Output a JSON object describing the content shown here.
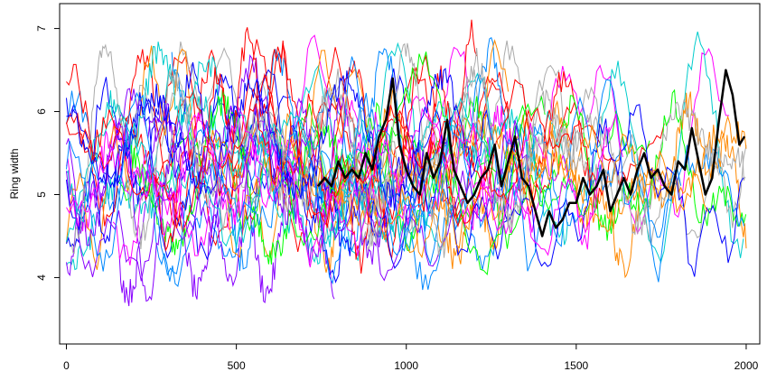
{
  "chart_data": {
    "type": "line",
    "title": "",
    "xlabel": "",
    "ylabel": "Ring width",
    "xlim": [
      -20,
      2040
    ],
    "ylim": [
      3.2,
      7.3
    ],
    "x_ticks": [
      {
        "value": 0,
        "label": "0"
      },
      {
        "value": 500,
        "label": "500"
      },
      {
        "value": 1000,
        "label": "1000"
      },
      {
        "value": 1500,
        "label": "1500"
      },
      {
        "value": 2000,
        "label": "2000"
      }
    ],
    "y_ticks": [
      {
        "value": 4,
        "label": "4"
      },
      {
        "value": 5,
        "label": "5"
      },
      {
        "value": 6,
        "label": "6"
      },
      {
        "value": 7,
        "label": "7"
      }
    ],
    "grid": false,
    "legend": "none",
    "background_series_count": 40,
    "background_colors": [
      "#ff0000",
      "#ff00ff",
      "#0000ff",
      "#0088ff",
      "#00cccc",
      "#00ff00",
      "#ff8800",
      "#8800ff",
      "#aaaaaa"
    ],
    "series": [
      {
        "color": "#000000",
        "x": [
          740,
          760,
          780,
          800,
          820,
          840,
          860,
          880,
          900,
          920,
          940,
          960,
          980,
          1000,
          1020,
          1040,
          1060,
          1080,
          1100,
          1120,
          1140,
          1160,
          1180,
          1200,
          1220,
          1240,
          1260,
          1280,
          1300,
          1320,
          1340,
          1360,
          1380,
          1400,
          1420,
          1440,
          1460,
          1480,
          1500,
          1520,
          1540,
          1560,
          1580,
          1600,
          1620,
          1640,
          1660,
          1680,
          1700,
          1720,
          1740,
          1760,
          1780,
          1800,
          1820,
          1840,
          1860,
          1880,
          1900,
          1920,
          1940,
          1960,
          1980,
          1995
        ],
        "y": [
          5.1,
          5.2,
          5.1,
          5.4,
          5.2,
          5.3,
          5.2,
          5.5,
          5.3,
          5.7,
          5.9,
          6.4,
          5.6,
          5.3,
          5.1,
          5.0,
          5.5,
          5.2,
          5.4,
          5.9,
          5.3,
          5.1,
          4.9,
          5.0,
          5.2,
          5.3,
          5.6,
          5.1,
          5.4,
          5.7,
          5.2,
          5.1,
          4.8,
          4.5,
          4.8,
          4.6,
          4.7,
          4.9,
          4.9,
          5.2,
          5.0,
          5.1,
          5.3,
          4.8,
          5.0,
          5.2,
          5.0,
          5.3,
          5.5,
          5.2,
          5.3,
          5.1,
          5.0,
          5.4,
          5.3,
          5.8,
          5.4,
          5.0,
          5.2,
          5.9,
          6.5,
          6.2,
          5.6,
          5.7
        ]
      }
    ]
  }
}
